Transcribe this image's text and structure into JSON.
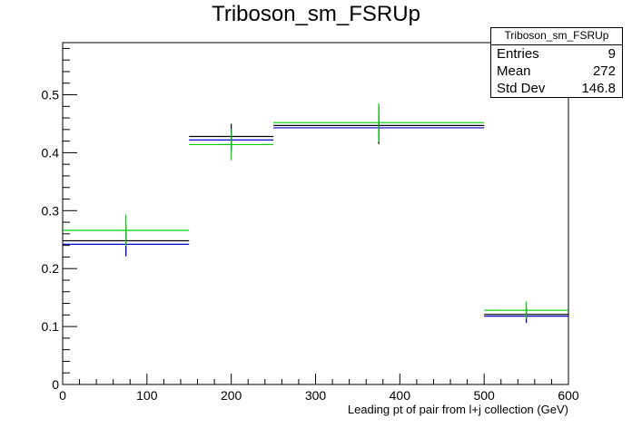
{
  "title": "Triboson_sm_FSRUp",
  "stats": {
    "name": "Triboson_sm_FSRUp",
    "rows": [
      {
        "label": "Entries",
        "value": "9"
      },
      {
        "label": "Mean",
        "value": "272"
      },
      {
        "label": "Std Dev",
        "value": "146.8"
      }
    ]
  },
  "colors": {
    "black": "#000000",
    "blue": "#0000cc",
    "green": "#00cc00"
  },
  "chart_data": {
    "type": "histogram",
    "title": "Triboson_sm_FSRUp",
    "xlabel": "Leading pt of pair from l+j collection (GeV)",
    "ylabel": "",
    "xlim": [
      0,
      600
    ],
    "ylim": [
      0,
      0.59
    ],
    "xticks": [
      0,
      100,
      200,
      300,
      400,
      500,
      600
    ],
    "yticks": [
      0,
      0.1,
      0.2,
      0.3,
      0.4,
      0.5
    ],
    "xtick_labels": [
      "0",
      "100",
      "200",
      "300",
      "400",
      "500",
      "600"
    ],
    "ytick_labels": [
      "0",
      "0.1",
      "0.2",
      "0.3",
      "0.4",
      "0.5"
    ],
    "grid": false,
    "bin_edges": [
      0,
      150,
      250,
      500,
      600
    ],
    "series": [
      {
        "color": "#000000",
        "values": [
          0.248,
          0.428,
          0.447,
          0.121
        ],
        "errors": [
          0.027,
          0.022,
          0.032,
          0.013
        ]
      },
      {
        "color": "#0000cc",
        "values": [
          0.242,
          0.422,
          0.443,
          0.118
        ],
        "errors": [
          0.02,
          0.02,
          0.02,
          0.012
        ]
      },
      {
        "color": "#00cc00",
        "values": [
          0.266,
          0.414,
          0.452,
          0.128
        ],
        "errors": [
          0.027,
          0.027,
          0.033,
          0.015
        ]
      }
    ]
  }
}
